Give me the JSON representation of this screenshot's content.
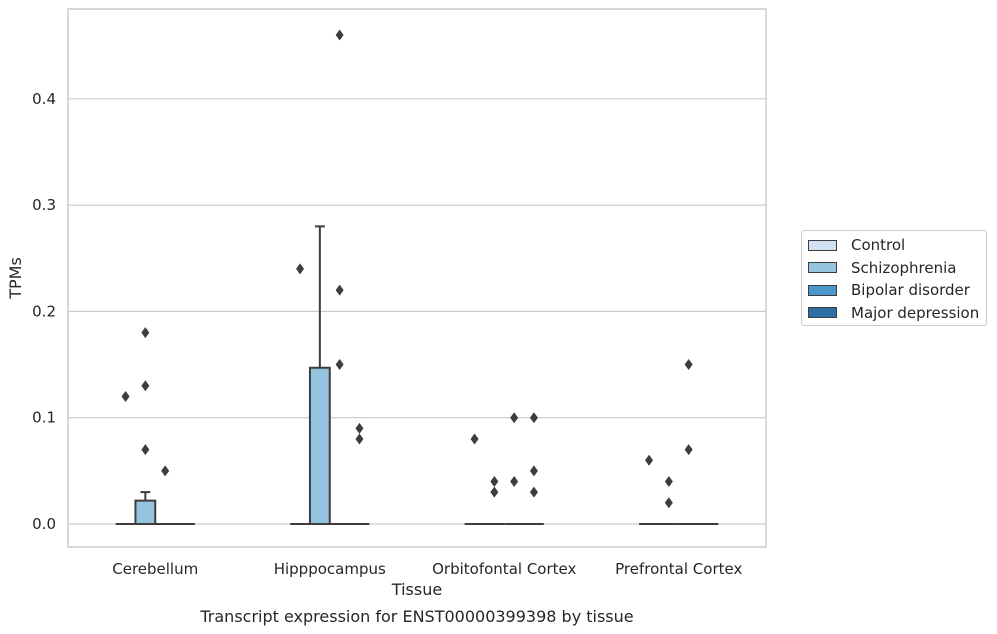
{
  "chart_data": {
    "type": "box",
    "title": "Transcript expression for ENST00000399398 by tissue",
    "xlabel": "Tissue",
    "ylabel": "TPMs",
    "ylim": [
      -0.023,
      0.482
    ],
    "yticks": [
      "0.0",
      "0.1",
      "0.2",
      "0.3",
      "0.4"
    ],
    "ytick_values": [
      0.0,
      0.1,
      0.2,
      0.3,
      0.4
    ],
    "grid": "horizontal",
    "legend_position": "right",
    "categories": [
      "Cerebellum",
      "Hipppocampus",
      "Orbitofontal Cortex",
      "Prefrontal Cortex"
    ],
    "series": [
      {
        "name": "Control",
        "color": "#d0e1f2",
        "boxes": [
          {
            "q1": 0,
            "median": 0,
            "q3": 0,
            "whisker_low": 0,
            "whisker_high": 0,
            "outliers": [
              0.12
            ]
          },
          {
            "q1": 0,
            "median": 0,
            "q3": 0,
            "whisker_low": 0,
            "whisker_high": 0,
            "outliers": [
              0.24
            ]
          },
          {
            "q1": 0,
            "median": 0,
            "q3": 0,
            "whisker_low": 0,
            "whisker_high": 0,
            "outliers": [
              0.08
            ]
          },
          {
            "q1": 0,
            "median": 0,
            "q3": 0,
            "whisker_low": 0,
            "whisker_high": 0,
            "outliers": [
              0.06
            ]
          }
        ]
      },
      {
        "name": "Schizophrenia",
        "color": "#94c4df",
        "boxes": [
          {
            "q1": 0,
            "median": 0,
            "q3": 0.022,
            "whisker_low": 0,
            "whisker_high": 0.03,
            "outliers": [
              0.07,
              0.13,
              0.18
            ]
          },
          {
            "q1": 0,
            "median": 0,
            "q3": 0.147,
            "whisker_low": 0,
            "whisker_high": 0.28,
            "outliers": []
          },
          {
            "q1": 0,
            "median": 0,
            "q3": 0,
            "whisker_low": 0,
            "whisker_high": 0,
            "outliers": [
              0.03,
              0.04
            ]
          },
          {
            "q1": 0,
            "median": 0,
            "q3": 0,
            "whisker_low": 0,
            "whisker_high": 0,
            "outliers": [
              0.02,
              0.04
            ]
          }
        ]
      },
      {
        "name": "Bipolar disorder",
        "color": "#4a98c9",
        "boxes": [
          {
            "q1": 0,
            "median": 0,
            "q3": 0,
            "whisker_low": 0,
            "whisker_high": 0,
            "outliers": [
              0.05
            ]
          },
          {
            "q1": 0,
            "median": 0,
            "q3": 0,
            "whisker_low": 0,
            "whisker_high": 0,
            "outliers": [
              0.15,
              0.22,
              0.46
            ]
          },
          {
            "q1": 0,
            "median": 0,
            "q3": 0,
            "whisker_low": 0,
            "whisker_high": 0,
            "outliers": [
              0.04,
              0.1
            ]
          },
          {
            "q1": 0,
            "median": 0,
            "q3": 0,
            "whisker_low": 0,
            "whisker_high": 0,
            "outliers": [
              0.07,
              0.15
            ]
          }
        ]
      },
      {
        "name": "Major depression",
        "color": "#2e6ea6",
        "boxes": [
          {
            "q1": 0,
            "median": 0,
            "q3": 0,
            "whisker_low": 0,
            "whisker_high": 0,
            "outliers": []
          },
          {
            "q1": 0,
            "median": 0,
            "q3": 0,
            "whisker_low": 0,
            "whisker_high": 0,
            "outliers": [
              0.08,
              0.09
            ]
          },
          {
            "q1": 0,
            "median": 0,
            "q3": 0,
            "whisker_low": 0,
            "whisker_high": 0,
            "outliers": [
              0.03,
              0.05,
              0.1
            ]
          },
          {
            "q1": 0,
            "median": 0,
            "q3": 0,
            "whisker_low": 0,
            "whisker_high": 0,
            "outliers": []
          }
        ]
      }
    ]
  }
}
